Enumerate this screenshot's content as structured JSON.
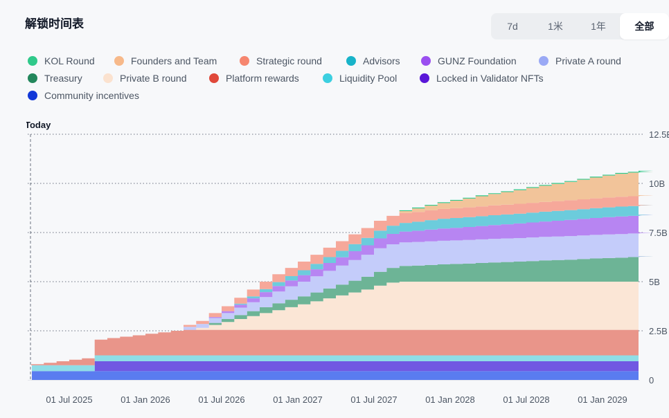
{
  "header": {
    "title": "解锁时间表",
    "tabs": [
      {
        "label": "7d",
        "active": false
      },
      {
        "label": "1米",
        "active": false
      },
      {
        "label": "1年",
        "active": false
      },
      {
        "label": "全部",
        "active": true
      }
    ]
  },
  "colors": {
    "kol_round": "#2fc98a",
    "founders": "#f2c49a",
    "strategic": "#f6a89a",
    "advisors": "#6cccdc",
    "gunz_foundation": "#b785f2",
    "private_a": "#c4ccfa",
    "treasury": "#6db496",
    "private_b": "#fbe6d6",
    "platform_rewards": "#e9958a",
    "liquidity_pool": "#8fdde6",
    "locked_validator": "#7158e2",
    "community": "#5a7cf0"
  },
  "chart_data": {
    "type": "area",
    "stacked": true,
    "step": true,
    "marker_label": "Today",
    "x_ticks": [
      "01 Jul 2025",
      "01 Jan 2026",
      "01 Jul 2026",
      "01 Jan 2027",
      "01 Jul 2027",
      "01 Jan 2028",
      "01 Jul 2028",
      "01 Jan 2029"
    ],
    "y_ticks": [
      "0",
      "2.5B",
      "5B",
      "7.5B",
      "10B",
      "12.5B"
    ],
    "ylim": [
      0,
      12.5
    ],
    "x_months": [
      "2025-03",
      "2025-04",
      "2025-05",
      "2025-06",
      "2025-07",
      "2025-08",
      "2025-09",
      "2025-10",
      "2025-11",
      "2025-12",
      "2026-01",
      "2026-02",
      "2026-03",
      "2026-04",
      "2026-05",
      "2026-06",
      "2026-07",
      "2026-08",
      "2026-09",
      "2026-10",
      "2026-11",
      "2026-12",
      "2027-01",
      "2027-02",
      "2027-03",
      "2027-04",
      "2027-05",
      "2027-06",
      "2027-07",
      "2027-08",
      "2027-09",
      "2027-10",
      "2027-11",
      "2027-12",
      "2028-01",
      "2028-02",
      "2028-03",
      "2028-04",
      "2028-05",
      "2028-06",
      "2028-07",
      "2028-08",
      "2028-09",
      "2028-10",
      "2028-11",
      "2028-12",
      "2029-01",
      "2029-02",
      "2029-03",
      "2029-04",
      "2029-05"
    ],
    "series": [
      {
        "name": "Community incentives",
        "color_key": "community",
        "values": [
          0.45,
          0.45,
          0.45,
          0.45,
          0.45,
          0.45,
          0.45,
          0.45,
          0.45,
          0.45,
          0.45,
          0.45,
          0.45,
          0.45,
          0.45,
          0.45,
          0.45,
          0.45,
          0.45,
          0.45,
          0.45,
          0.45,
          0.45,
          0.45,
          0.45,
          0.45,
          0.45,
          0.45,
          0.45,
          0.45,
          0.45,
          0.45,
          0.45,
          0.45,
          0.45,
          0.45,
          0.45,
          0.45,
          0.45,
          0.45,
          0.45,
          0.45,
          0.45,
          0.45,
          0.45,
          0.45,
          0.45,
          0.45,
          0.45,
          0.45,
          0.45
        ]
      },
      {
        "name": "Locked in Validator NFTs",
        "color_key": "locked_validator",
        "values": [
          0,
          0,
          0,
          0,
          0,
          0,
          0.5,
          0.5,
          0.5,
          0.5,
          0.5,
          0.5,
          0.5,
          0.5,
          0.5,
          0.5,
          0.5,
          0.5,
          0.5,
          0.5,
          0.5,
          0.5,
          0.5,
          0.5,
          0.5,
          0.5,
          0.5,
          0.5,
          0.5,
          0.5,
          0.5,
          0.5,
          0.5,
          0.5,
          0.5,
          0.5,
          0.5,
          0.5,
          0.5,
          0.5,
          0.5,
          0.5,
          0.5,
          0.5,
          0.5,
          0.5,
          0.5,
          0.5,
          0.5,
          0.5,
          0.5
        ]
      },
      {
        "name": "Liquidity Pool",
        "color_key": "liquidity_pool",
        "values": [
          0.3,
          0.3,
          0.3,
          0.3,
          0.3,
          0.3,
          0.3,
          0.3,
          0.3,
          0.3,
          0.3,
          0.3,
          0.3,
          0.3,
          0.3,
          0.3,
          0.3,
          0.3,
          0.3,
          0.3,
          0.3,
          0.3,
          0.3,
          0.3,
          0.3,
          0.3,
          0.3,
          0.3,
          0.3,
          0.3,
          0.3,
          0.3,
          0.3,
          0.3,
          0.3,
          0.3,
          0.3,
          0.3,
          0.3,
          0.3,
          0.3,
          0.3,
          0.3,
          0.3,
          0.3,
          0.3,
          0.3,
          0.3,
          0.3,
          0.3,
          0.3
        ]
      },
      {
        "name": "Platform rewards",
        "color_key": "platform_rewards",
        "values": [
          0,
          0.05,
          0.12,
          0.2,
          0.28,
          0.35,
          0.8,
          0.88,
          0.95,
          1.02,
          1.1,
          1.17,
          1.25,
          1.3,
          1.3,
          1.3,
          1.3,
          1.3,
          1.3,
          1.3,
          1.3,
          1.3,
          1.3,
          1.3,
          1.3,
          1.3,
          1.3,
          1.3,
          1.3,
          1.3,
          1.3,
          1.3,
          1.3,
          1.3,
          1.3,
          1.3,
          1.3,
          1.3,
          1.3,
          1.3,
          1.3,
          1.3,
          1.3,
          1.3,
          1.3,
          1.3,
          1.3,
          1.3,
          1.3,
          1.3,
          1.3
        ]
      },
      {
        "name": "Private B round",
        "color_key": "private_b",
        "values": [
          0,
          0,
          0,
          0,
          0,
          0,
          0,
          0,
          0,
          0,
          0,
          0,
          0,
          0,
          0.1,
          0.25,
          0.4,
          0.55,
          0.7,
          0.85,
          1.0,
          1.15,
          1.3,
          1.45,
          1.6,
          1.75,
          1.9,
          2.05,
          2.25,
          2.4,
          2.45,
          2.45,
          2.45,
          2.45,
          2.45,
          2.45,
          2.45,
          2.45,
          2.45,
          2.45,
          2.45,
          2.45,
          2.45,
          2.45,
          2.45,
          2.45,
          2.45,
          2.45,
          2.45,
          2.45,
          2.45
        ]
      },
      {
        "name": "Treasury",
        "color_key": "treasury",
        "values": [
          0,
          0,
          0,
          0,
          0,
          0,
          0,
          0,
          0,
          0,
          0,
          0,
          0,
          0,
          0,
          0.1,
          0.15,
          0.2,
          0.25,
          0.3,
          0.35,
          0.38,
          0.4,
          0.45,
          0.5,
          0.55,
          0.6,
          0.65,
          0.7,
          0.75,
          0.8,
          0.82,
          0.85,
          0.88,
          0.9,
          0.92,
          0.95,
          0.98,
          1.0,
          1.02,
          1.05,
          1.08,
          1.1,
          1.12,
          1.15,
          1.18,
          1.2,
          1.22,
          1.25,
          1.27,
          1.3
        ]
      },
      {
        "name": "Private A round",
        "color_key": "private_a",
        "values": [
          0,
          0,
          0,
          0,
          0,
          0,
          0,
          0,
          0,
          0,
          0,
          0,
          0,
          0.15,
          0.2,
          0.25,
          0.3,
          0.38,
          0.45,
          0.52,
          0.6,
          0.68,
          0.75,
          0.82,
          0.9,
          0.97,
          1.05,
          1.12,
          1.2,
          1.2,
          1.2,
          1.2,
          1.2,
          1.2,
          1.2,
          1.2,
          1.2,
          1.2,
          1.2,
          1.2,
          1.2,
          1.2,
          1.2,
          1.2,
          1.2,
          1.2,
          1.2,
          1.2,
          1.2,
          1.2,
          1.2
        ]
      },
      {
        "name": "GUNZ Foundation",
        "color_key": "gunz_foundation",
        "values": [
          0,
          0,
          0,
          0,
          0,
          0,
          0,
          0,
          0,
          0,
          0,
          0,
          0,
          0,
          0,
          0.05,
          0.1,
          0.15,
          0.2,
          0.25,
          0.28,
          0.3,
          0.33,
          0.36,
          0.4,
          0.42,
          0.45,
          0.48,
          0.5,
          0.53,
          0.55,
          0.57,
          0.6,
          0.62,
          0.64,
          0.66,
          0.68,
          0.7,
          0.72,
          0.74,
          0.76,
          0.78,
          0.8,
          0.82,
          0.84,
          0.86,
          0.88,
          0.9,
          0.9,
          0.9,
          0.9
        ]
      },
      {
        "name": "Advisors",
        "color_key": "advisors",
        "values": [
          0,
          0,
          0,
          0,
          0,
          0,
          0,
          0,
          0,
          0,
          0,
          0,
          0,
          0,
          0,
          0,
          0,
          0.05,
          0.1,
          0.15,
          0.2,
          0.22,
          0.25,
          0.28,
          0.3,
          0.33,
          0.36,
          0.38,
          0.4,
          0.42,
          0.44,
          0.46,
          0.48,
          0.5,
          0.5,
          0.5,
          0.5,
          0.5,
          0.5,
          0.5,
          0.5,
          0.5,
          0.5,
          0.5,
          0.5,
          0.5,
          0.5,
          0.5,
          0.5,
          0.5,
          0.5
        ]
      },
      {
        "name": "Strategic round",
        "color_key": "strategic",
        "values": [
          0,
          0,
          0,
          0,
          0,
          0,
          0,
          0,
          0,
          0,
          0,
          0,
          0,
          0.1,
          0.15,
          0.2,
          0.25,
          0.3,
          0.35,
          0.38,
          0.4,
          0.42,
          0.44,
          0.46,
          0.48,
          0.49,
          0.5,
          0.5,
          0.5,
          0.5,
          0.5,
          0.5,
          0.5,
          0.5,
          0.5,
          0.5,
          0.5,
          0.5,
          0.5,
          0.5,
          0.5,
          0.5,
          0.5,
          0.5,
          0.5,
          0.5,
          0.5,
          0.5,
          0.5,
          0.5,
          0.5
        ]
      },
      {
        "name": "Founders and Team",
        "color_key": "founders",
        "values": [
          0,
          0,
          0,
          0,
          0,
          0,
          0,
          0,
          0,
          0,
          0,
          0,
          0,
          0,
          0,
          0,
          0,
          0,
          0,
          0,
          0,
          0,
          0,
          0,
          0,
          0,
          0,
          0,
          0,
          0,
          0.1,
          0.18,
          0.24,
          0.3,
          0.38,
          0.45,
          0.52,
          0.58,
          0.64,
          0.7,
          0.76,
          0.82,
          0.88,
          0.94,
          1.0,
          1.06,
          1.12,
          1.17,
          1.2,
          1.2,
          1.2
        ]
      },
      {
        "name": "KOL Round",
        "color_key": "kol_round",
        "values": [
          0,
          0,
          0,
          0,
          0,
          0,
          0,
          0,
          0,
          0,
          0,
          0,
          0,
          0,
          0,
          0,
          0,
          0,
          0,
          0,
          0,
          0,
          0,
          0,
          0,
          0,
          0,
          0,
          0,
          0,
          0.04,
          0.04,
          0.04,
          0.04,
          0.04,
          0.04,
          0.04,
          0.04,
          0.04,
          0.04,
          0.04,
          0.04,
          0.04,
          0.04,
          0.04,
          0.04,
          0.04,
          0.04,
          0.04,
          0.04,
          0.04
        ]
      }
    ]
  }
}
